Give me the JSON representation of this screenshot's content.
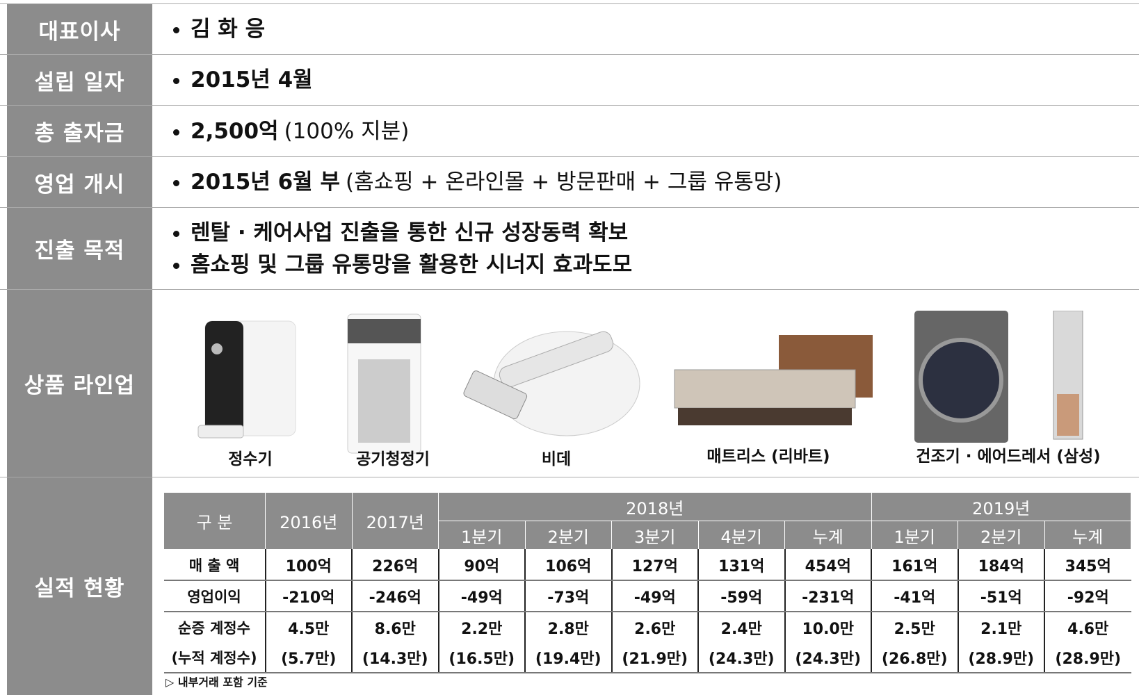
{
  "rows": [
    {
      "label": "대표이사",
      "items": [
        {
          "bold": "김 화 응"
        }
      ]
    },
    {
      "label": "설립 일자",
      "items": [
        {
          "bold": "2015년 4월"
        }
      ]
    },
    {
      "label": "총 출자금",
      "items": [
        {
          "bold": "2,500억",
          "note": "(100% 지분)"
        }
      ]
    },
    {
      "label": "영업 개시",
      "items": [
        {
          "bold": "2015년 6월 부",
          "note": "(홈쇼핑 + 온라인몰 + 방문판매 + 그룹 유통망)"
        }
      ]
    },
    {
      "label": "진출 목적",
      "items": [
        {
          "bold": "렌탈 · 케어사업 진출을 통한 신규 성장동력 확보"
        },
        {
          "bold": "홈쇼핑 및 그룹 유통망을 활용한 시너지 효과도모"
        }
      ]
    }
  ],
  "products": {
    "label": "상품 라인업",
    "items": [
      "정수기",
      "공기청정기",
      "비데",
      "매트리스 (리바트)",
      "건조기 · 에어드레서 (삼성)"
    ]
  },
  "performance": {
    "label": "실적 현황",
    "table": {
      "header": [
        "구 분",
        "2016년",
        "2017년",
        "2018년",
        "2019년"
      ],
      "subheader": [
        "1분기",
        "2분기",
        "3분기",
        "4분기",
        "누계",
        "1분기",
        "2분기",
        "누계"
      ],
      "rows": [
        {
          "label": "매 출 액",
          "cells": [
            "100억",
            "226억",
            "90억",
            "106억",
            "127억",
            "131억",
            "454억",
            "161억",
            "184억",
            "345억"
          ]
        },
        {
          "label": "영업이익",
          "cells": [
            "-210억",
            "-246억",
            "-49억",
            "-73억",
            "-49억",
            "-59억",
            "-231억",
            "-41억",
            "-51억",
            "-92억"
          ]
        },
        {
          "label": "순증 계정수",
          "cells": [
            "4.5만",
            "8.6만",
            "2.2만",
            "2.8만",
            "2.6만",
            "2.4만",
            "10.0만",
            "2.5만",
            "2.1만",
            "4.6만"
          ]
        },
        {
          "label": "(누적 계정수)",
          "cells": [
            "(5.7만)",
            "(14.3만)",
            "(16.5만)",
            "(19.4만)",
            "(21.9만)",
            "(24.3만)",
            "(24.3만)",
            "(26.8만)",
            "(28.9만)",
            "(28.9만)"
          ]
        }
      ]
    },
    "footnote": "▷ 내부거래 포함 기준"
  }
}
